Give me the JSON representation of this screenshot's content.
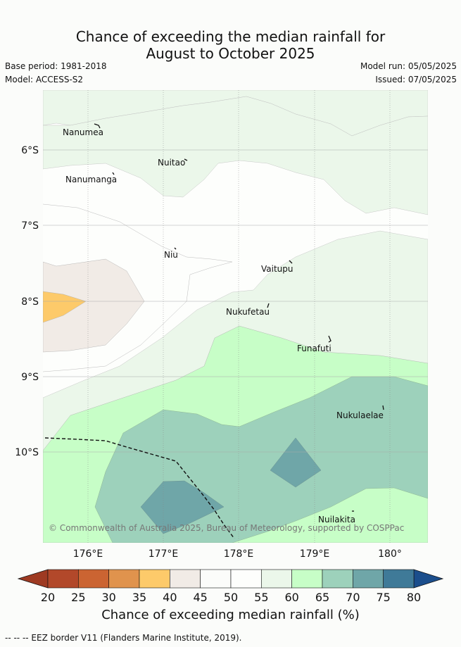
{
  "title_line1": "Chance of exceeding the median rainfall for",
  "title_line2": "August to October 2025",
  "base_period": "Base period: 1981-2018",
  "model": "Model: ACCESS-S2",
  "model_run": "Model run: 05/05/2025",
  "issued": "Issued: 07/05/2025",
  "credit": "© Commonwealth of Australia 2025, Bureau of Meteorology, supported by COSPPac",
  "lon_ticks": [
    "176°E",
    "177°E",
    "178°E",
    "179°E",
    "180°"
  ],
  "lat_ticks": [
    "6°S",
    "7°S",
    "8°S",
    "9°S",
    "10°S"
  ],
  "islands": [
    {
      "name": "Nanumea"
    },
    {
      "name": "Nuitao"
    },
    {
      "name": "Nanumanga"
    },
    {
      "name": "Niu"
    },
    {
      "name": "Vaitupu"
    },
    {
      "name": "Nukufetau"
    },
    {
      "name": "Funafuti"
    },
    {
      "name": "Nukulaelae"
    },
    {
      "name": "Nuilakita"
    }
  ],
  "colorbar": {
    "label": "Chance of exceeding median rainfall (%)",
    "ticks": [
      "20",
      "25",
      "30",
      "35",
      "40",
      "45",
      "50",
      "55",
      "60",
      "65",
      "70",
      "75",
      "80"
    ],
    "colors": [
      "#b2482a",
      "#cb6432",
      "#e0934d",
      "#fdca6a",
      "#f1ebe6",
      "#fbfcfa",
      "#fdfefc",
      "#ebf7ea",
      "#c7fec7",
      "#9dd1bb",
      "#6fa6a8",
      "#3f7a98"
    ],
    "under_color": "#9e3a22",
    "over_color": "#1b4e8c"
  },
  "footer": "--  --  -- EEZ border V11 (Flanders Marine Institute, 2019)."
}
